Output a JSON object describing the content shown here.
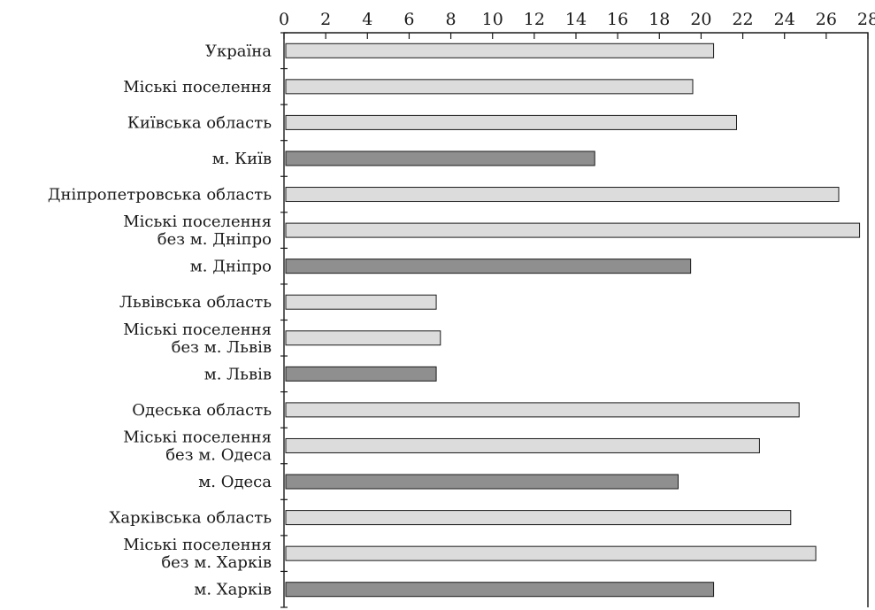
{
  "chart_data": {
    "type": "bar",
    "orientation": "horizontal",
    "title": "",
    "xlabel": "",
    "ylabel": "",
    "xlim": [
      0,
      28
    ],
    "x_ticks": [
      0,
      2,
      4,
      6,
      8,
      10,
      12,
      14,
      16,
      18,
      20,
      22,
      24,
      26,
      28
    ],
    "x_axis_position": "top",
    "grid": false,
    "legend": "none",
    "colors": {
      "light": "#dcdcdc",
      "dark": "#8f8f8f"
    },
    "categories": [
      {
        "label": [
          "Україна"
        ],
        "value": 20.6,
        "shade": "light"
      },
      {
        "label": [
          "Міські поселення"
        ],
        "value": 19.6,
        "shade": "light"
      },
      {
        "label": [
          "Київська область"
        ],
        "value": 21.7,
        "shade": "light"
      },
      {
        "label": [
          "м. Київ"
        ],
        "value": 14.9,
        "shade": "dark"
      },
      {
        "label": [
          "Дніпропетровська область"
        ],
        "value": 26.6,
        "shade": "light"
      },
      {
        "label": [
          "Міські поселення",
          "без м. Дніпро"
        ],
        "value": 27.6,
        "shade": "light"
      },
      {
        "label": [
          "м. Дніпро"
        ],
        "value": 19.5,
        "shade": "dark"
      },
      {
        "label": [
          "Львівська область"
        ],
        "value": 7.3,
        "shade": "light"
      },
      {
        "label": [
          "Міські поселення",
          "без м. Львів"
        ],
        "value": 7.5,
        "shade": "light"
      },
      {
        "label": [
          "м. Львів"
        ],
        "value": 7.3,
        "shade": "dark"
      },
      {
        "label": [
          "Одеська область"
        ],
        "value": 24.7,
        "shade": "light"
      },
      {
        "label": [
          "Міські поселення",
          "без м. Одеса"
        ],
        "value": 22.8,
        "shade": "light"
      },
      {
        "label": [
          "м. Одеса"
        ],
        "value": 18.9,
        "shade": "dark"
      },
      {
        "label": [
          "Харківська область"
        ],
        "value": 24.3,
        "shade": "light"
      },
      {
        "label": [
          "Міські поселення",
          "без м. Харків"
        ],
        "value": 25.5,
        "shade": "light"
      },
      {
        "label": [
          "м. Харків"
        ],
        "value": 20.6,
        "shade": "dark"
      }
    ]
  }
}
